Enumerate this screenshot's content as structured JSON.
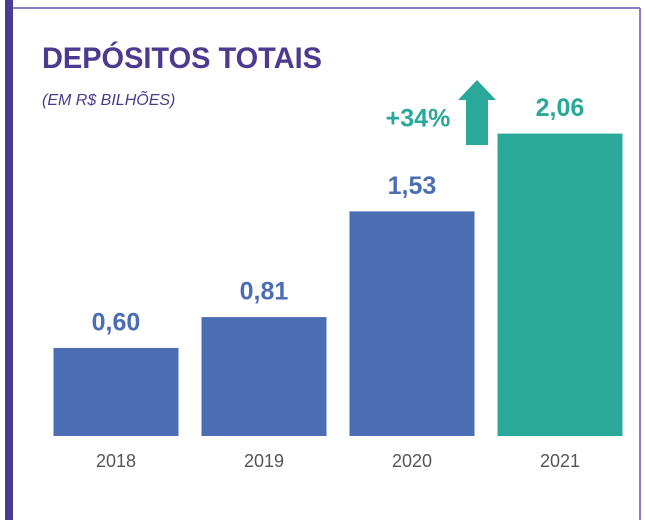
{
  "chart_data": {
    "type": "bar",
    "title": "DEPÓSITOS TOTAIS",
    "subtitle": "(EM R$ BILHÕES)",
    "categories": [
      "2018",
      "2019",
      "2020",
      "2021"
    ],
    "values": [
      0.6,
      0.81,
      1.53,
      2.06
    ],
    "value_labels": [
      "0,60",
      "0,81",
      "1,53",
      "2,06"
    ],
    "colors": [
      "#4b6db4",
      "#4b6db4",
      "#4b6db4",
      "#2aa99b"
    ],
    "annotation": "+34%",
    "annotation_color": "#2aa99b",
    "ylim": [
      0,
      2.5
    ]
  }
}
